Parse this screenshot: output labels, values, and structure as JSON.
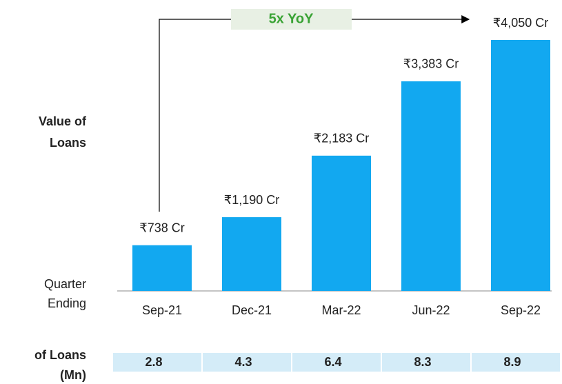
{
  "chart_data": {
    "type": "bar",
    "categories": [
      "Sep-21",
      "Dec-21",
      "Mar-22",
      "Jun-22",
      "Sep-22"
    ],
    "values": [
      738,
      1190,
      2183,
      3383,
      4050
    ],
    "value_labels": [
      "₹738 Cr",
      "₹1,190 Cr",
      "₹2,183 Cr",
      "₹3,383 Cr",
      "₹4,050 Cr"
    ],
    "color": "#12a8f0",
    "y_axis_label": [
      "Value of",
      "Loans"
    ],
    "x_axis_label": [
      "Quarter",
      "Ending"
    ],
    "annotation": "5x YoY",
    "loan_counts": {
      "label": [
        "of Loans",
        "(Mn)"
      ],
      "values": [
        2.8,
        4.3,
        6.4,
        8.3,
        8.9
      ]
    }
  }
}
